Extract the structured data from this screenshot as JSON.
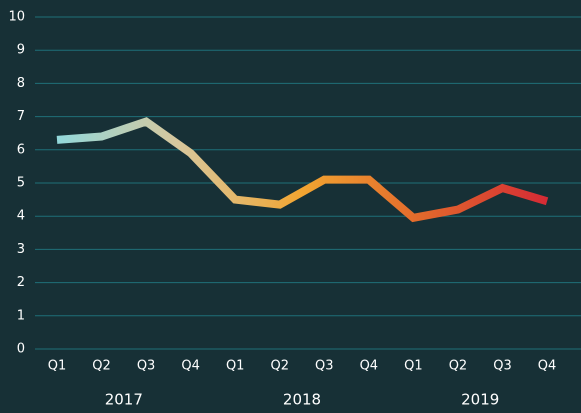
{
  "chart_data": {
    "type": "line",
    "categories": [
      "Q1",
      "Q2",
      "Q3",
      "Q4",
      "Q1",
      "Q2",
      "Q3",
      "Q4",
      "Q1",
      "Q2",
      "Q3",
      "Q4"
    ],
    "groups": [
      {
        "label": "2017",
        "span": 4
      },
      {
        "label": "2018",
        "span": 4
      },
      {
        "label": "2019",
        "span": 4
      }
    ],
    "series": [
      {
        "values": [
          6.3,
          6.4,
          6.85,
          5.9,
          4.5,
          4.35,
          5.1,
          5.1,
          3.95,
          4.2,
          4.85,
          4.45
        ],
        "colors": [
          "#92d8db",
          "#d8c79c",
          "#f2a531",
          "#e2672c",
          "#d52b35"
        ]
      }
    ],
    "ylim": [
      0,
      10
    ],
    "yticks": [
      0,
      1,
      2,
      3,
      4,
      5,
      6,
      7,
      8,
      9,
      10
    ],
    "grid": true
  }
}
